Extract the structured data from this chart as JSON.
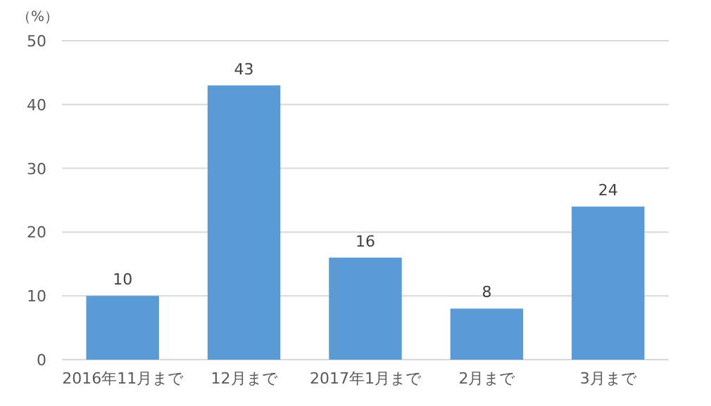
{
  "chart_data": {
    "type": "bar",
    "ylabel": "（%）",
    "categories": [
      "2016年11月まで",
      "12月まで",
      "2017年1月まで",
      "2月まで",
      "3月まで"
    ],
    "values": [
      10,
      43,
      16,
      8,
      24
    ],
    "color": "#5b9bd5",
    "ylim": [
      0,
      50
    ],
    "yticks": [
      0,
      10,
      20,
      30,
      40,
      50
    ],
    "grid": "y",
    "data_labels": true
  }
}
